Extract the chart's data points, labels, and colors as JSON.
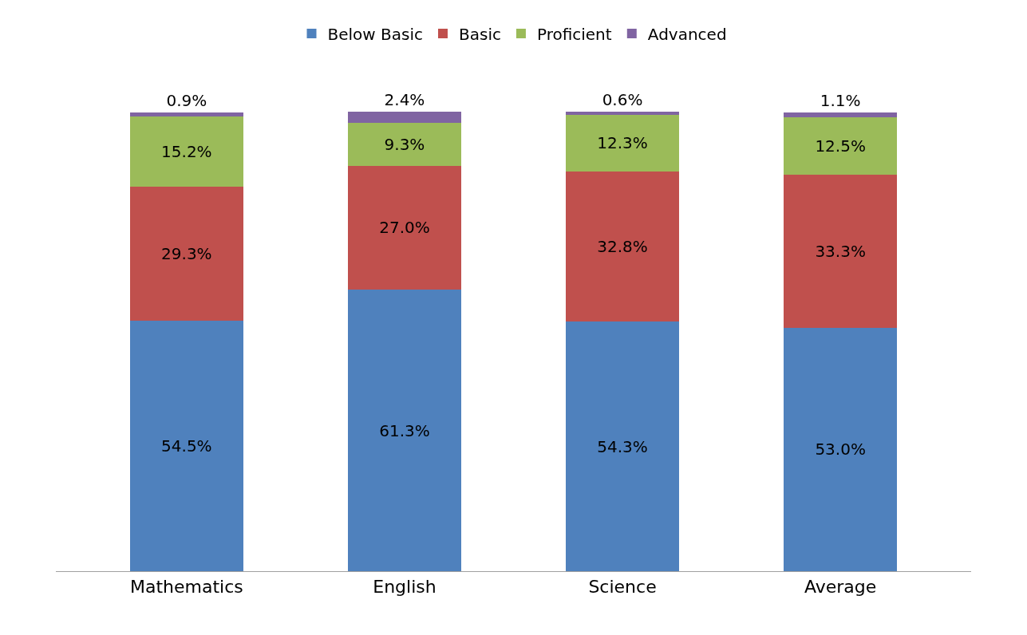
{
  "chart_data": {
    "type": "bar",
    "stacked": true,
    "legend": "top",
    "categories": [
      "Mathematics",
      "English",
      "Science",
      "Average"
    ],
    "series": [
      {
        "name": "Below Basic",
        "color": "#4f81bd",
        "values": [
          54.5,
          61.3,
          54.3,
          53.0
        ],
        "value_labels": [
          "54.5%",
          "61.3%",
          "54.3%",
          "53.0%"
        ]
      },
      {
        "name": "Basic",
        "color": "#c0504d",
        "values": [
          29.3,
          27.0,
          32.8,
          33.3
        ],
        "value_labels": [
          "29.3%",
          "27.0%",
          "32.8%",
          "33.3%"
        ]
      },
      {
        "name": "Proficient",
        "color": "#9bbb59",
        "values": [
          15.2,
          9.3,
          12.3,
          12.5
        ],
        "value_labels": [
          "15.2%",
          "9.3%",
          "12.3%",
          "12.5%"
        ]
      },
      {
        "name": "Advanced",
        "color": "#8064a2",
        "values": [
          0.9,
          2.4,
          0.6,
          1.1
        ],
        "value_labels": [
          "0.9%",
          "2.4%",
          "0.6%",
          "1.1%"
        ]
      }
    ]
  }
}
